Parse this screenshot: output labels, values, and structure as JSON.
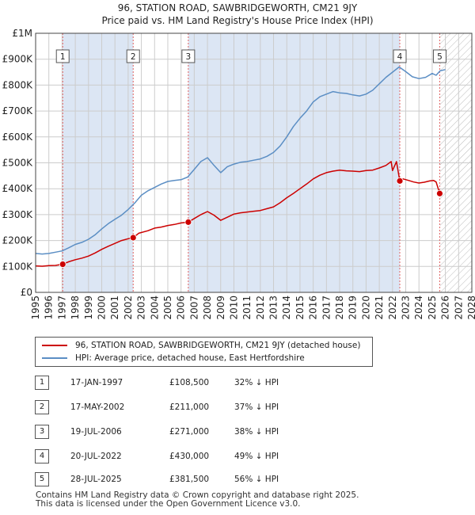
{
  "chart_data": {
    "type": "line",
    "title": "96, STATION ROAD, SAWBRIDGEWORTH, CM21 9JY",
    "subtitle": "Price paid vs. HM Land Registry's House Price Index (HPI)",
    "xlabel": "",
    "ylabel": "",
    "xlim": [
      1995,
      2028
    ],
    "ylim": [
      0,
      1000000
    ],
    "x_ticks": [
      "1995",
      "1996",
      "1997",
      "1998",
      "1999",
      "2000",
      "2001",
      "2002",
      "2003",
      "2004",
      "2005",
      "2006",
      "2007",
      "2008",
      "2009",
      "2010",
      "2011",
      "2012",
      "2013",
      "2014",
      "2015",
      "2016",
      "2017",
      "2018",
      "2019",
      "2020",
      "2021",
      "2022",
      "2023",
      "2024",
      "2025",
      "2026",
      "2027",
      "2028"
    ],
    "y_ticks": [
      {
        "value": 0,
        "label": "£0"
      },
      {
        "value": 100000,
        "label": "£100K"
      },
      {
        "value": 200000,
        "label": "£200K"
      },
      {
        "value": 300000,
        "label": "£300K"
      },
      {
        "value": 400000,
        "label": "£400K"
      },
      {
        "value": 500000,
        "label": "£500K"
      },
      {
        "value": 600000,
        "label": "£600K"
      },
      {
        "value": 700000,
        "label": "£700K"
      },
      {
        "value": 800000,
        "label": "£800K"
      },
      {
        "value": 900000,
        "label": "£900K"
      },
      {
        "value": 1000000,
        "label": "£1M"
      }
    ],
    "forecast_start": 2025.6,
    "colors": {
      "property": "#cc0000",
      "hpi": "#5b8ec4",
      "shade": "#dce6f4",
      "grid": "#cccccc"
    },
    "series": [
      {
        "name": "96, STATION ROAD, SAWBRIDGEWORTH, CM21 9JY (detached house)",
        "color": "#cc0000",
        "x": [
          1995.0,
          1995.5,
          1996.0,
          1996.5,
          1997.05,
          1997.5,
          1998.0,
          1998.5,
          1999.0,
          1999.5,
          2000.0,
          2000.5,
          2001.0,
          2001.5,
          2002.0,
          2002.38,
          2002.8,
          2003.5,
          2004.0,
          2004.5,
          2005.0,
          2005.5,
          2006.0,
          2006.55,
          2007.0,
          2007.5,
          2008.0,
          2008.5,
          2009.0,
          2009.5,
          2010.0,
          2010.5,
          2011.0,
          2011.5,
          2012.0,
          2012.5,
          2013.0,
          2013.5,
          2014.0,
          2014.5,
          2015.0,
          2015.5,
          2016.0,
          2016.5,
          2017.0,
          2017.5,
          2018.0,
          2018.5,
          2019.0,
          2019.5,
          2020.0,
          2020.5,
          2021.0,
          2021.5,
          2021.9,
          2022.0,
          2022.3,
          2022.55,
          2022.8,
          2023.2,
          2023.6,
          2024.0,
          2024.4,
          2024.8,
          2025.1,
          2025.3,
          2025.57
        ],
        "values": [
          102000,
          101000,
          103000,
          104000,
          108500,
          118000,
          126000,
          132000,
          140000,
          152000,
          166000,
          178000,
          189000,
          200000,
          207000,
          211000,
          228000,
          238000,
          248000,
          252000,
          258000,
          262000,
          268000,
          271000,
          285000,
          300000,
          312000,
          298000,
          278000,
          290000,
          302000,
          307000,
          310000,
          313000,
          316000,
          323000,
          330000,
          346000,
          365000,
          382000,
          400000,
          418000,
          438000,
          452000,
          462000,
          468000,
          472000,
          469000,
          468000,
          466000,
          470000,
          472000,
          480000,
          490000,
          505000,
          470000,
          505000,
          430000,
          438000,
          432000,
          426000,
          422000,
          425000,
          430000,
          432000,
          426000,
          381500
        ]
      },
      {
        "name": "HPI: Average price, detached house, East Hertfordshire",
        "color": "#5b8ec4",
        "x": [
          1995.0,
          1995.5,
          1996.0,
          1996.5,
          1997.0,
          1997.5,
          1998.0,
          1998.5,
          1999.0,
          1999.5,
          2000.0,
          2000.5,
          2001.0,
          2001.5,
          2002.0,
          2002.5,
          2003.0,
          2003.5,
          2004.0,
          2004.5,
          2005.0,
          2005.5,
          2006.0,
          2006.5,
          2007.0,
          2007.5,
          2008.0,
          2008.5,
          2009.0,
          2009.5,
          2010.0,
          2010.5,
          2011.0,
          2011.5,
          2012.0,
          2012.5,
          2013.0,
          2013.5,
          2014.0,
          2014.5,
          2015.0,
          2015.5,
          2016.0,
          2016.5,
          2017.0,
          2017.5,
          2018.0,
          2018.5,
          2019.0,
          2019.5,
          2020.0,
          2020.5,
          2021.0,
          2021.5,
          2022.0,
          2022.5,
          2023.0,
          2023.5,
          2024.0,
          2024.5,
          2025.0,
          2025.3,
          2025.6,
          2026.0
        ],
        "values": [
          150000,
          148000,
          150000,
          155000,
          160000,
          172000,
          185000,
          193000,
          205000,
          222000,
          245000,
          265000,
          282000,
          298000,
          320000,
          345000,
          375000,
          392000,
          405000,
          418000,
          428000,
          432000,
          435000,
          445000,
          475000,
          505000,
          520000,
          490000,
          462000,
          485000,
          495000,
          502000,
          505000,
          510000,
          515000,
          525000,
          540000,
          565000,
          600000,
          640000,
          672000,
          700000,
          735000,
          755000,
          765000,
          775000,
          770000,
          768000,
          762000,
          758000,
          765000,
          780000,
          805000,
          830000,
          850000,
          870000,
          852000,
          832000,
          825000,
          830000,
          845000,
          838000,
          855000,
          860000
        ]
      }
    ],
    "sales": [
      {
        "id": "1",
        "date": "17-JAN-1997",
        "x": 1997.05,
        "price": 108500,
        "price_label": "£108,500",
        "hpi_label": "32% ↓ HPI"
      },
      {
        "id": "2",
        "date": "17-MAY-2002",
        "x": 2002.38,
        "price": 211000,
        "price_label": "£211,000",
        "hpi_label": "37% ↓ HPI"
      },
      {
        "id": "3",
        "date": "19-JUL-2006",
        "x": 2006.55,
        "price": 271000,
        "price_label": "£271,000",
        "hpi_label": "38% ↓ HPI"
      },
      {
        "id": "4",
        "date": "20-JUL-2022",
        "x": 2022.55,
        "price": 430000,
        "price_label": "£430,000",
        "hpi_label": "49% ↓ HPI"
      },
      {
        "id": "5",
        "date": "28-JUL-2025",
        "x": 2025.57,
        "price": 381500,
        "price_label": "£381,500",
        "hpi_label": "56% ↓ HPI"
      }
    ]
  },
  "legend": {
    "property_label": "96, STATION ROAD, SAWBRIDGEWORTH, CM21 9JY (detached house)",
    "hpi_label": "HPI: Average price, detached house, East Hertfordshire"
  },
  "footer": {
    "line1": "Contains HM Land Registry data © Crown copyright and database right 2025.",
    "line2": "This data is licensed under the Open Government Licence v3.0."
  }
}
